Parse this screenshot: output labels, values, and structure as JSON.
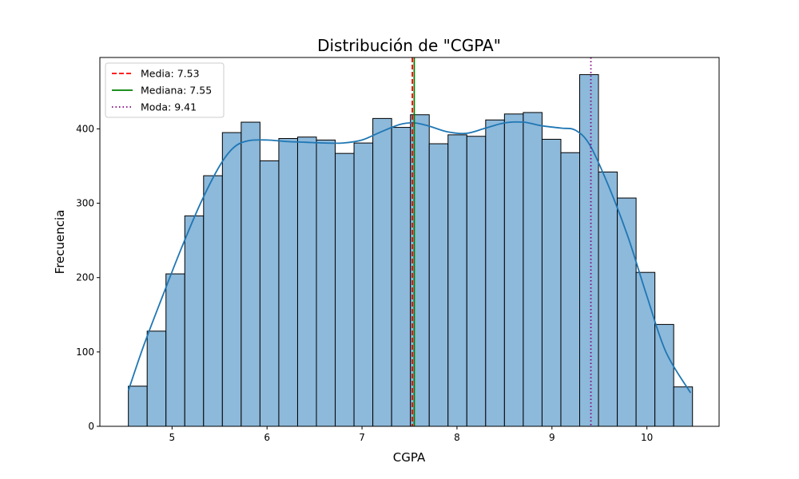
{
  "chart_data": {
    "type": "bar",
    "title": "Distribución de \"CGPA\"",
    "xlabel": "CGPA",
    "ylabel": "Frecuencia",
    "xlim": [
      4.24,
      10.76
    ],
    "ylim": [
      0,
      496
    ],
    "xticks": [
      5,
      6,
      7,
      8,
      9,
      10
    ],
    "yticks": [
      0,
      100,
      200,
      300,
      400
    ],
    "bin_start": 4.54,
    "bin_width": 0.198,
    "counts": [
      54,
      128,
      205,
      283,
      337,
      395,
      409,
      357,
      387,
      389,
      385,
      367,
      381,
      414,
      402,
      419,
      380,
      392,
      390,
      412,
      420,
      422,
      386,
      368,
      473,
      342,
      307,
      207,
      137,
      53
    ],
    "kde": {
      "x": [
        4.54,
        4.7,
        4.9,
        5.1,
        5.3,
        5.5,
        5.65,
        5.8,
        6.0,
        6.2,
        6.4,
        6.6,
        6.8,
        7.0,
        7.2,
        7.4,
        7.55,
        7.7,
        7.9,
        8.1,
        8.3,
        8.5,
        8.7,
        8.9,
        9.1,
        9.25,
        9.4,
        9.6,
        9.8,
        10.0,
        10.2,
        10.46
      ],
      "y": [
        48,
        108,
        175,
        240,
        300,
        350,
        375,
        384,
        385,
        383,
        382,
        381,
        381,
        385,
        396,
        406,
        408,
        404,
        396,
        394,
        401,
        408,
        409,
        404,
        401,
        398,
        378,
        322,
        255,
        175,
        100,
        45
      ]
    },
    "vlines": [
      {
        "name": "Media",
        "label": "Media: 7.53",
        "x": 7.53,
        "color": "#ff0000",
        "style": "dashed"
      },
      {
        "name": "Mediana",
        "label": "Mediana: 7.55",
        "x": 7.55,
        "color": "#008000",
        "style": "solid"
      },
      {
        "name": "Moda",
        "label": "Moda: 9.41",
        "x": 9.41,
        "color": "#800080",
        "style": "dotted"
      }
    ],
    "legend_position": "top-left",
    "grid": false,
    "colors": {
      "bar_fill": "#8db9db",
      "bar_edge": "#000000",
      "kde_line": "#1f77b4"
    }
  }
}
